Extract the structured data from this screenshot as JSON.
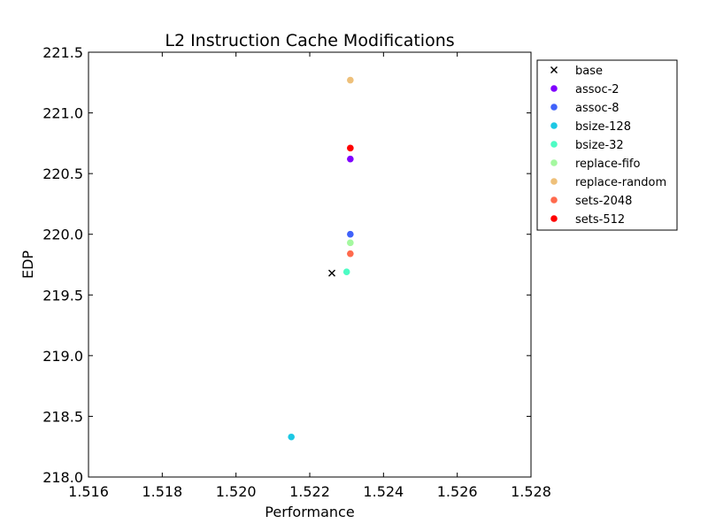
{
  "chart_data": {
    "type": "scatter",
    "title": "L2 Instruction Cache Modifications",
    "xlabel": "Performance",
    "ylabel": "EDP",
    "xlim": [
      1.516,
      1.528
    ],
    "ylim": [
      218.0,
      221.5
    ],
    "xticks": [
      "1.516",
      "1.518",
      "1.520",
      "1.522",
      "1.524",
      "1.526",
      "1.528"
    ],
    "yticks": [
      "218.0",
      "218.5",
      "219.0",
      "219.5",
      "220.0",
      "220.5",
      "221.0",
      "221.5"
    ],
    "grid": false,
    "legend_position": "outside-right-top",
    "series": [
      {
        "name": "base",
        "marker": "x",
        "color": "#000000",
        "x": 1.5226,
        "y": 219.68
      },
      {
        "name": "assoc-2",
        "marker": "o",
        "color": "#8000ff",
        "x": 1.5231,
        "y": 220.62
      },
      {
        "name": "assoc-8",
        "marker": "o",
        "color": "#4062fa",
        "x": 1.5231,
        "y": 220.0
      },
      {
        "name": "bsize-128",
        "marker": "o",
        "color": "#1cc8e4",
        "x": 1.5215,
        "y": 218.33
      },
      {
        "name": "bsize-32",
        "marker": "o",
        "color": "#4dfcc4",
        "x": 1.523,
        "y": 219.69
      },
      {
        "name": "replace-fifo",
        "marker": "o",
        "color": "#a4f89f",
        "x": 1.5231,
        "y": 219.93
      },
      {
        "name": "replace-random",
        "marker": "o",
        "color": "#eec07a",
        "x": 1.5231,
        "y": 221.27
      },
      {
        "name": "sets-2048",
        "marker": "o",
        "color": "#ff6a4d",
        "x": 1.5231,
        "y": 219.84
      },
      {
        "name": "sets-512",
        "marker": "o",
        "color": "#ff0000",
        "x": 1.5231,
        "y": 220.71
      }
    ]
  }
}
